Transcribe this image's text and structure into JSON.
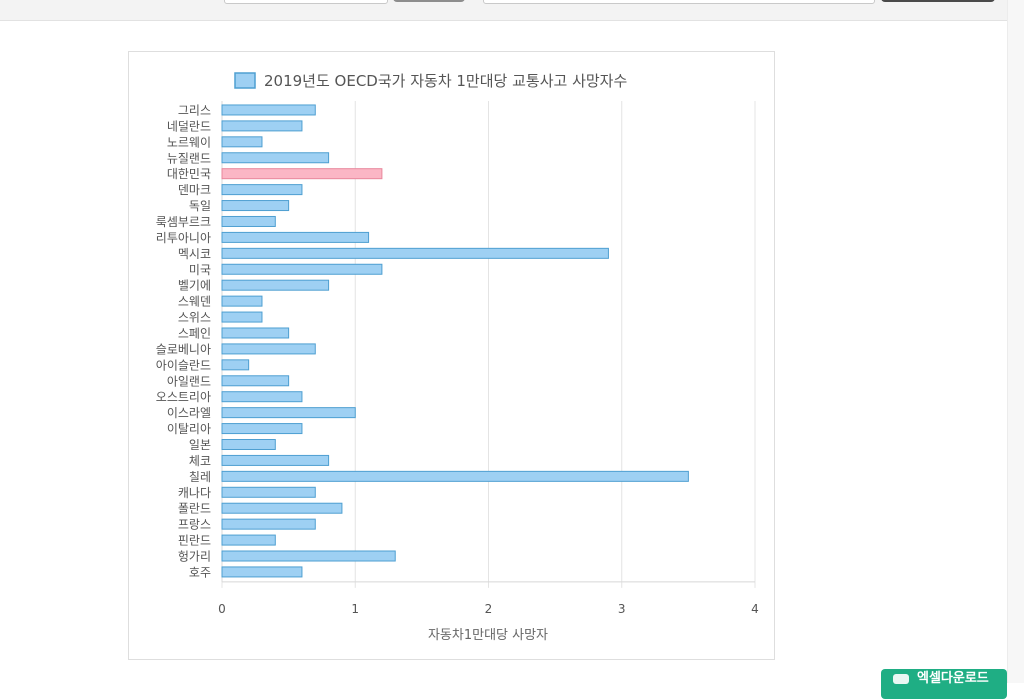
{
  "chart_data": {
    "type": "bar",
    "orientation": "horizontal",
    "title": "2019년도 OECD국가 자동차 1만대당 교통사고 사망자수",
    "xlabel": "자동차1만대당 사망자",
    "ylabel": "",
    "xlim": [
      0,
      4
    ],
    "xticks": [
      "0",
      "1",
      "2",
      "3",
      "4"
    ],
    "grid": true,
    "legend": "top",
    "categories": [
      "그리스",
      "네덜란드",
      "노르웨이",
      "뉴질랜드",
      "대한민국",
      "덴마크",
      "독일",
      "룩셈부르크",
      "리투아니아",
      "멕시코",
      "미국",
      "벨기에",
      "스웨덴",
      "스위스",
      "스페인",
      "슬로베니아",
      "아이슬란드",
      "아일랜드",
      "오스트리아",
      "이스라엘",
      "이탈리아",
      "일본",
      "체코",
      "칠레",
      "캐나다",
      "폴란드",
      "프랑스",
      "핀란드",
      "헝가리",
      "호주"
    ],
    "series": [
      {
        "name": "2019년도 OECD국가 자동차 1만대당 교통사고 사망자수",
        "values": [
          0.7,
          0.6,
          0.3,
          0.8,
          1.2,
          0.6,
          0.5,
          0.4,
          1.1,
          2.9,
          1.2,
          0.8,
          0.3,
          0.3,
          0.5,
          0.7,
          0.2,
          0.5,
          0.6,
          1.0,
          0.6,
          0.4,
          0.8,
          3.5,
          0.7,
          0.9,
          0.7,
          0.4,
          1.3,
          0.6
        ]
      }
    ],
    "highlight_category": "대한민국",
    "colors": {
      "bar_fill": "#9ed0f3",
      "bar_stroke": "#4e9fd1",
      "highlight_fill": "#fbb6c5",
      "highlight_stroke": "#e8879c",
      "grid": "#e4e4e4",
      "text": "#555555"
    }
  },
  "download_button": {
    "label": "엑셀다운로드",
    "icon": "download-icon"
  }
}
